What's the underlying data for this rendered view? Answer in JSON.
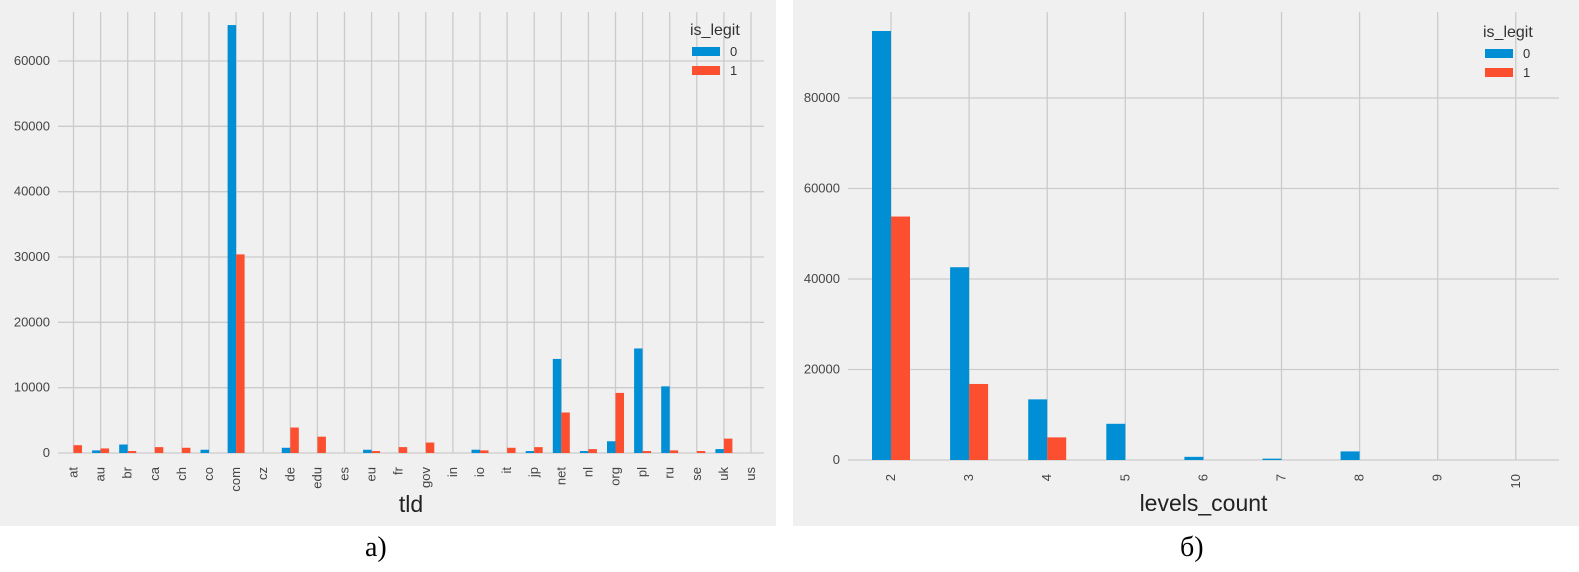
{
  "captions": {
    "a": "а)",
    "b": "б)"
  },
  "colors": {
    "series_0": "#008fd5",
    "series_1": "#fc4f30",
    "grid": "#cbcbcb",
    "background": "#f0f0f0"
  },
  "chart_data": [
    {
      "type": "bar",
      "xlabel": "tld",
      "ylabel": "",
      "ylim": [
        0,
        67500
      ],
      "yticks": [
        0,
        10000,
        20000,
        30000,
        40000,
        50000,
        60000
      ],
      "categories": [
        "at",
        "au",
        "br",
        "ca",
        "ch",
        "co",
        "com",
        "cz",
        "de",
        "edu",
        "es",
        "eu",
        "fr",
        "gov",
        "in",
        "io",
        "it",
        "jp",
        "net",
        "nl",
        "org",
        "pl",
        "ru",
        "se",
        "uk",
        "us"
      ],
      "legend": {
        "title": "is_legit",
        "position": "top-right"
      },
      "grid": true,
      "series": [
        {
          "name": "0",
          "values": [
            0,
            400,
            1300,
            0,
            0,
            500,
            65500,
            0,
            800,
            0,
            0,
            500,
            0,
            0,
            0,
            500,
            0,
            300,
            14400,
            300,
            1800,
            16000,
            10200,
            0,
            600,
            0
          ]
        },
        {
          "name": "1",
          "values": [
            1200,
            700,
            300,
            900,
            800,
            0,
            30400,
            0,
            3900,
            2500,
            0,
            300,
            900,
            1600,
            0,
            400,
            800,
            900,
            6200,
            600,
            9200,
            300,
            400,
            300,
            2200,
            0
          ]
        }
      ]
    },
    {
      "type": "bar",
      "xlabel": "levels_count",
      "ylabel": "",
      "ylim": [
        0,
        99000
      ],
      "yticks": [
        0,
        20000,
        40000,
        60000,
        80000
      ],
      "categories": [
        "2",
        "3",
        "4",
        "5",
        "6",
        "7",
        "8",
        "9",
        "10"
      ],
      "legend": {
        "title": "is_legit",
        "position": "top-right"
      },
      "grid": true,
      "series": [
        {
          "name": "0",
          "values": [
            94800,
            42600,
            13400,
            8000,
            700,
            300,
            1900,
            0,
            0
          ]
        },
        {
          "name": "1",
          "values": [
            53800,
            16800,
            5000,
            0,
            0,
            0,
            0,
            0,
            0
          ]
        }
      ]
    }
  ]
}
